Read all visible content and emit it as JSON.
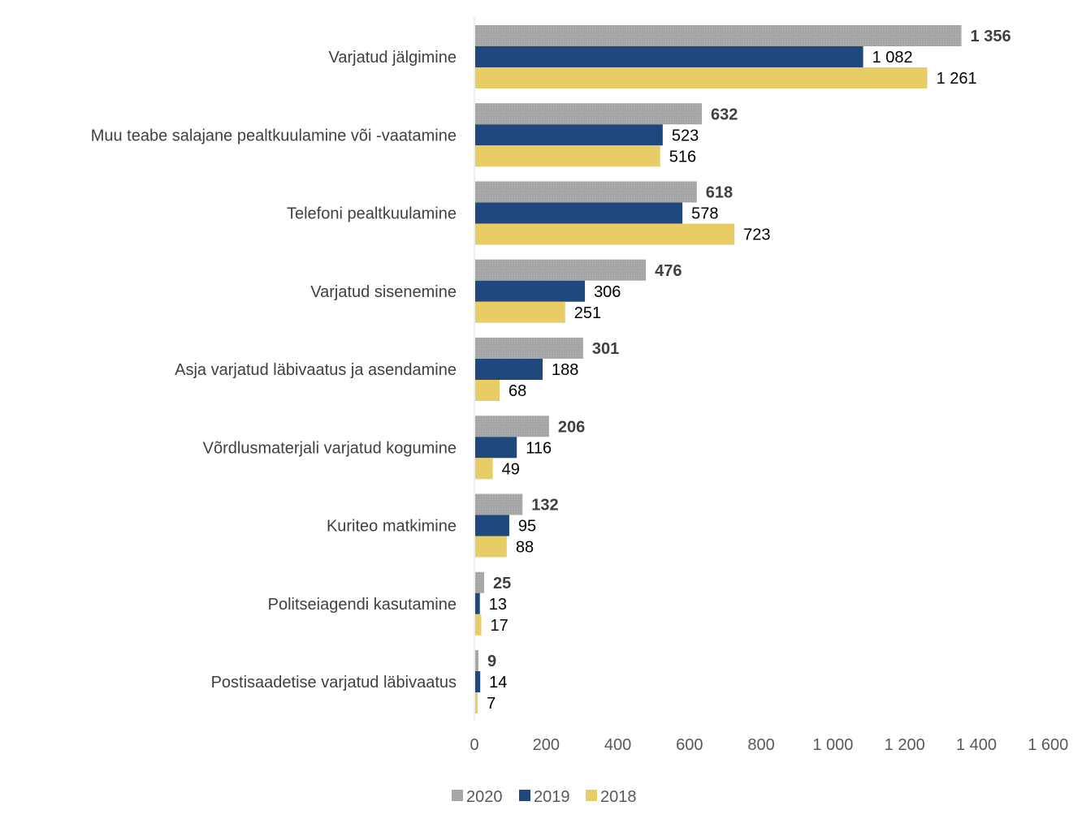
{
  "chart_data": {
    "type": "bar",
    "orientation": "horizontal",
    "categories": [
      "Varjatud jälgimine",
      "Muu teabe salajane pealtkuulamine või -vaatamine",
      "Telefoni pealtkuulamine",
      "Varjatud sisenemine",
      "Asja varjatud läbivaatus ja asendamine",
      "Võrdlusmaterjali varjatud kogumine",
      "Kuriteo matkimine",
      "Politseiagendi kasutamine",
      "Postisaadetise varjatud läbivaatus"
    ],
    "series": [
      {
        "name": "2020",
        "color": "#a5a5a5",
        "values": [
          1356,
          632,
          618,
          476,
          301,
          206,
          132,
          25,
          9
        ],
        "labels": [
          "1 356",
          "632",
          "618",
          "476",
          "301",
          "206",
          "132",
          "25",
          "9"
        ]
      },
      {
        "name": "2019",
        "color": "#1f497d",
        "values": [
          1082,
          523,
          578,
          306,
          188,
          116,
          95,
          13,
          14
        ],
        "labels": [
          "1 082",
          "523",
          "578",
          "306",
          "188",
          "116",
          "95",
          "13",
          "14"
        ]
      },
      {
        "name": "2018",
        "color": "#e8cd66",
        "values": [
          1261,
          516,
          723,
          251,
          68,
          49,
          88,
          17,
          7
        ],
        "labels": [
          "1 261",
          "516",
          "723",
          "251",
          "68",
          "49",
          "88",
          "17",
          "7"
        ]
      }
    ],
    "xlim": [
      0,
      1600
    ],
    "xticks": [
      0,
      200,
      400,
      600,
      800,
      1000,
      1200,
      1400,
      1600
    ],
    "xtick_labels": [
      "0",
      "200",
      "400",
      "600",
      "800",
      "1 000",
      "1 200",
      "1 400",
      "1 600"
    ],
    "title": "",
    "xlabel": "",
    "ylabel": "",
    "grid": false,
    "legend_position": "bottom",
    "legend": [
      "2020",
      "2019",
      "2018"
    ]
  }
}
